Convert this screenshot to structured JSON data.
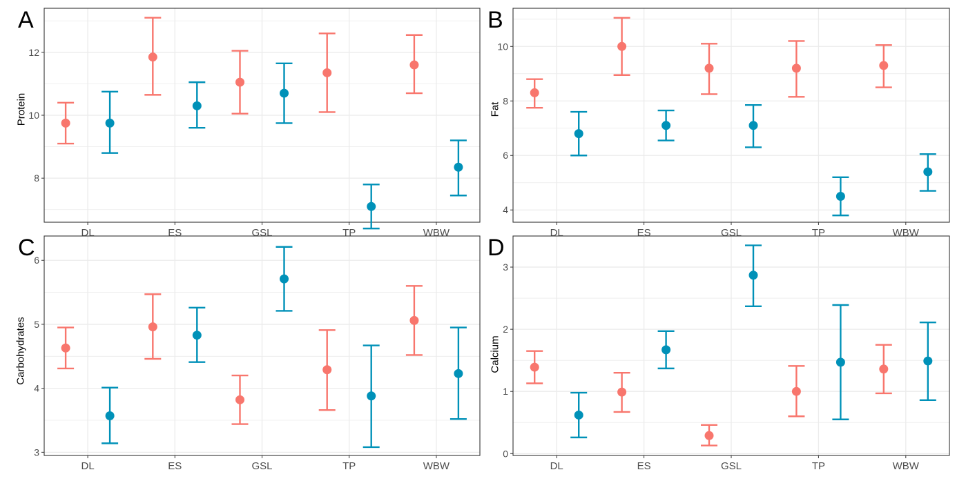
{
  "colors": {
    "group1": "#F8766D",
    "group2": "#0091B8",
    "grid": "#EBEBEB",
    "frame": "#333333",
    "tick_text": "#4D4D4D"
  },
  "chart_data": [
    {
      "panel_label": "A",
      "type": "errorbar-point",
      "ylabel": "Protein",
      "categories": [
        "DL",
        "ES",
        "GSL",
        "TP",
        "WBW"
      ],
      "ylim": [
        6.6,
        13.4
      ],
      "yticks": [
        8,
        10,
        12
      ],
      "yticklabels": [
        "8",
        "10",
        "12"
      ],
      "grid": true,
      "series": [
        {
          "color": "#F8766D",
          "mean": [
            9.75,
            11.85,
            11.05,
            11.35,
            11.6
          ],
          "lower": [
            9.1,
            10.65,
            10.05,
            10.1,
            10.7
          ],
          "upper": [
            10.4,
            13.1,
            12.05,
            12.6,
            12.55
          ]
        },
        {
          "color": "#0091B8",
          "mean": [
            9.75,
            10.3,
            10.7,
            7.1,
            8.35
          ],
          "lower": [
            8.8,
            9.6,
            9.75,
            6.4,
            7.45
          ],
          "upper": [
            10.75,
            11.05,
            11.65,
            7.8,
            9.2
          ]
        }
      ]
    },
    {
      "panel_label": "B",
      "type": "errorbar-point",
      "ylabel": "Fat",
      "categories": [
        "DL",
        "ES",
        "GSL",
        "TP",
        "WBW"
      ],
      "ylim": [
        3.55,
        11.4
      ],
      "yticks": [
        4,
        6,
        8,
        10
      ],
      "yticklabels": [
        "4",
        "6",
        "8",
        "10"
      ],
      "grid": true,
      "series": [
        {
          "color": "#F8766D",
          "mean": [
            8.3,
            10.0,
            9.2,
            9.2,
            9.3
          ],
          "lower": [
            7.75,
            8.95,
            8.25,
            8.15,
            8.5
          ],
          "upper": [
            8.8,
            11.05,
            10.1,
            10.2,
            10.05
          ]
        },
        {
          "color": "#0091B8",
          "mean": [
            6.8,
            7.1,
            7.1,
            4.5,
            5.4
          ],
          "lower": [
            6.0,
            6.55,
            6.3,
            3.8,
            4.7
          ],
          "upper": [
            7.6,
            7.65,
            7.85,
            5.2,
            6.05
          ]
        }
      ]
    },
    {
      "panel_label": "C",
      "type": "errorbar-point",
      "ylabel": "Carbohydrates",
      "categories": [
        "DL",
        "ES",
        "GSL",
        "TP",
        "WBW"
      ],
      "ylim": [
        2.95,
        6.38
      ],
      "yticks": [
        3,
        4,
        5,
        6
      ],
      "yticklabels": [
        "3",
        "4",
        "5",
        "6"
      ],
      "grid": true,
      "series": [
        {
          "color": "#F8766D",
          "mean": [
            4.63,
            4.96,
            3.82,
            4.29,
            5.06
          ],
          "lower": [
            4.31,
            4.46,
            3.44,
            3.66,
            4.52
          ],
          "upper": [
            4.95,
            5.47,
            4.2,
            4.91,
            5.6
          ]
        },
        {
          "color": "#0091B8",
          "mean": [
            3.57,
            4.83,
            5.71,
            3.88,
            4.23
          ],
          "lower": [
            3.14,
            4.41,
            5.21,
            3.08,
            3.52
          ],
          "upper": [
            4.01,
            5.26,
            6.21,
            4.67,
            4.95
          ]
        }
      ]
    },
    {
      "panel_label": "D",
      "type": "errorbar-point",
      "ylabel": "Calcium",
      "categories": [
        "DL",
        "ES",
        "GSL",
        "TP",
        "WBW"
      ],
      "ylim": [
        -0.03,
        3.5
      ],
      "yticks": [
        0,
        1,
        2,
        3
      ],
      "yticklabels": [
        "0",
        "1",
        "2",
        "3"
      ],
      "grid": true,
      "series": [
        {
          "color": "#F8766D",
          "mean": [
            1.39,
            0.99,
            0.29,
            1.0,
            1.36
          ],
          "lower": [
            1.13,
            0.67,
            0.13,
            0.6,
            0.97
          ],
          "upper": [
            1.65,
            1.3,
            0.46,
            1.41,
            1.75
          ]
        },
        {
          "color": "#0091B8",
          "mean": [
            0.62,
            1.67,
            2.87,
            1.47,
            1.49
          ],
          "lower": [
            0.26,
            1.37,
            2.37,
            0.55,
            0.86
          ],
          "upper": [
            0.98,
            1.97,
            3.35,
            2.39,
            2.11
          ]
        }
      ]
    }
  ]
}
